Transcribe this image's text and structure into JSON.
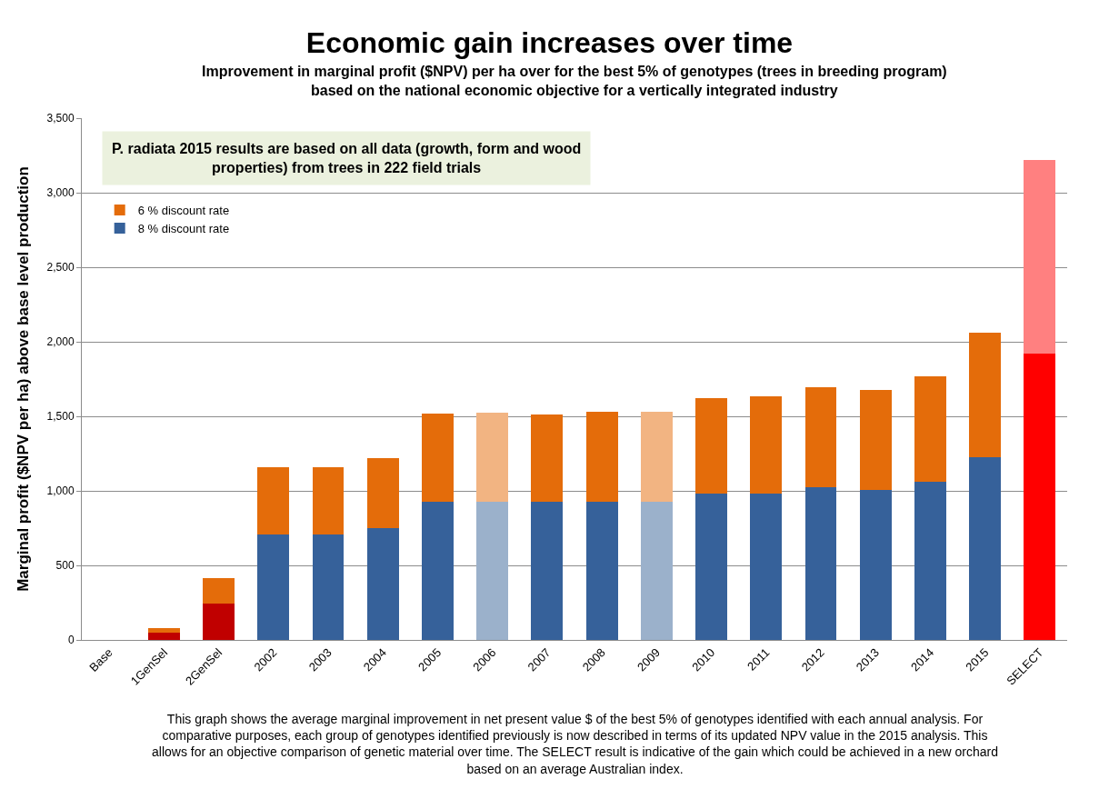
{
  "chart_data": {
    "type": "bar",
    "stacked": true,
    "title": "Economic gain increases over time",
    "subtitle": "Improvement in marginal profit ($NPV) per ha over for the best 5% of genotypes (trees in breeding program) based on the national economic objective for a vertically integrated industry",
    "ylabel": "Marginal profit ($NPV per ha) above base level production",
    "categories": [
      "Base",
      "1GenSel",
      "2GenSel",
      "2002",
      "2003",
      "2004",
      "2005",
      "2006",
      "2007",
      "2008",
      "2009",
      "2010",
      "2011",
      "2012",
      "2013",
      "2014",
      "2015",
      "SELECT"
    ],
    "series": [
      {
        "name": "8 % discount rate",
        "color": "#36619a",
        "colors": [
          null,
          "#c00000",
          "#c00000",
          null,
          null,
          null,
          null,
          "#9bb1cb",
          null,
          null,
          "#9bb1cb",
          null,
          null,
          null,
          null,
          null,
          null,
          "#ff0000"
        ],
        "values": [
          0,
          50,
          245,
          706,
          705,
          748,
          925,
          925,
          925,
          928,
          925,
          980,
          980,
          1022,
          1008,
          1060,
          1225,
          1920
        ]
      },
      {
        "name": "6 % discount rate",
        "color": "#e46c0a",
        "colors": [
          null,
          null,
          null,
          null,
          null,
          null,
          null,
          "#f2b482",
          null,
          null,
          "#f2b482",
          null,
          null,
          null,
          null,
          null,
          null,
          "#ff8080"
        ],
        "values": [
          0,
          30,
          170,
          450,
          455,
          472,
          595,
          600,
          587,
          600,
          605,
          645,
          655,
          675,
          667,
          710,
          835,
          1300
        ]
      }
    ],
    "ylim": [
      0,
      3500
    ],
    "yticks": [
      0,
      500,
      {
        "value": 1000,
        "label": "1,000"
      },
      {
        "value": 1500,
        "label": "1,500"
      },
      {
        "value": 2000,
        "label": "2,000"
      },
      {
        "value": 2500,
        "label": "2,500"
      },
      {
        "value": 3000,
        "label": "3,000"
      },
      {
        "value": 3500,
        "label": "3,500"
      }
    ],
    "grid": "y",
    "legend": "top left",
    "annotations": [
      "P. radiata 2015 results are based on all data (growth, form and wood properties) from trees in 222 field trials",
      "This graph shows the average marginal improvement in net present value $ of the best 5% of genotypes identified with each annual analysis. For comparative purposes, each group of genotypes identified previously is now described in terms of its updated NPV value in the 2015 analysis. This allows for an objective comparison of genetic material over time. The SELECT result is indicative of the gain which could be achieved in a new orchard based on an average Australian index."
    ]
  }
}
